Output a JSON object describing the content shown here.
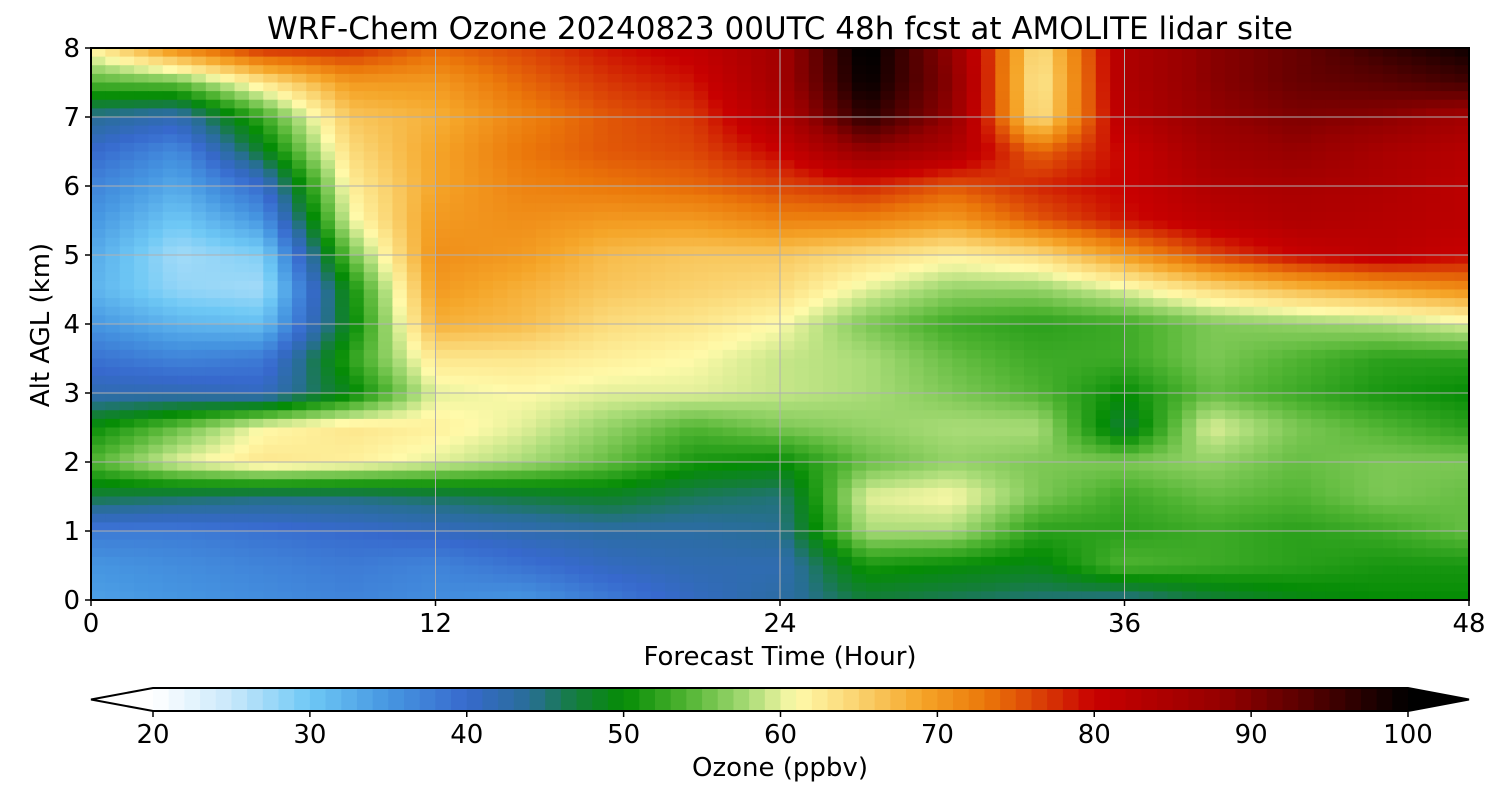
{
  "chart_data": {
    "type": "heatmap",
    "title": "WRF-Chem Ozone  20240823 00UTC 48h fcst at AMOLITE lidar site",
    "xlabel": "Forecast Time (Hour)",
    "ylabel": "Alt AGL (km)",
    "xlim": [
      0,
      48
    ],
    "ylim": [
      0,
      8
    ],
    "x_ticks": [
      "0",
      "12",
      "24",
      "36",
      "48"
    ],
    "y_ticks": [
      "0",
      "1",
      "2",
      "3",
      "4",
      "5",
      "6",
      "7",
      "8"
    ],
    "grid": true,
    "colorbar": {
      "label": "Ozone  (ppbv)",
      "range": [
        20,
        100
      ],
      "extend": "both",
      "ticks": [
        "20",
        "30",
        "40",
        "50",
        "60",
        "70",
        "80",
        "90",
        "100"
      ]
    },
    "x": [
      0,
      3,
      6,
      9,
      12,
      15,
      18,
      21,
      24,
      27,
      30,
      33,
      36,
      39,
      42,
      45,
      48
    ],
    "y": [
      0,
      0.5,
      1,
      1.5,
      2,
      2.5,
      3,
      3.5,
      4,
      4.5,
      5,
      5.5,
      6,
      6.5,
      7,
      7.5,
      8
    ],
    "z": [
      [
        34,
        35,
        36,
        37,
        36,
        35,
        38,
        41,
        43,
        47,
        46,
        45,
        44,
        47,
        49,
        50,
        50
      ],
      [
        35,
        36,
        37,
        38,
        37,
        39,
        41,
        42,
        42,
        51,
        50,
        49,
        54,
        53,
        52,
        51,
        51
      ],
      [
        38,
        38,
        39,
        40,
        41,
        42,
        43,
        43,
        44,
        58,
        58,
        52,
        52,
        53,
        52,
        53,
        55
      ],
      [
        47,
        46,
        45,
        45,
        46,
        47,
        48,
        46,
        45,
        60,
        61,
        56,
        53,
        55,
        54,
        56,
        55
      ],
      [
        54,
        60,
        63,
        62,
        60,
        58,
        55,
        51,
        50,
        55,
        57,
        56,
        56,
        57,
        55,
        56,
        56
      ],
      [
        50,
        55,
        61,
        63,
        62,
        60,
        57,
        54,
        56,
        57,
        58,
        58,
        47,
        60,
        56,
        54,
        52
      ],
      [
        42,
        42,
        41,
        49,
        60,
        61,
        60,
        60,
        59,
        58,
        56,
        54,
        50,
        55,
        53,
        51,
        50
      ],
      [
        39,
        37,
        38,
        52,
        63,
        63,
        62,
        61,
        59,
        58,
        55,
        53,
        53,
        56,
        54,
        52,
        52
      ],
      [
        35,
        32,
        31,
        49,
        68,
        67,
        64,
        63,
        61,
        56,
        53,
        52,
        53,
        56,
        57,
        58,
        60
      ],
      [
        32,
        28,
        27,
        50,
        70,
        68,
        66,
        65,
        64,
        60,
        57,
        57,
        60,
        64,
        67,
        69,
        71
      ],
      [
        33,
        27,
        29,
        55,
        71,
        70,
        67,
        66,
        66,
        64,
        62,
        64,
        70,
        76,
        80,
        82,
        80
      ],
      [
        35,
        30,
        35,
        60,
        70,
        71,
        70,
        70,
        72,
        72,
        70,
        75,
        79,
        82,
        84,
        83,
        82
      ],
      [
        37,
        33,
        40,
        62,
        69,
        72,
        73,
        74,
        76,
        78,
        75,
        78,
        80,
        84,
        85,
        84,
        82
      ],
      [
        40,
        36,
        48,
        64,
        69,
        73,
        75,
        76,
        80,
        88,
        84,
        74,
        80,
        86,
        88,
        85,
        83
      ],
      [
        44,
        42,
        53,
        66,
        68,
        72,
        75,
        77,
        84,
        97,
        88,
        63,
        83,
        88,
        90,
        89,
        86
      ],
      [
        54,
        55,
        63,
        70,
        70,
        74,
        77,
        79,
        86,
        100,
        89,
        62,
        84,
        89,
        92,
        93,
        95
      ],
      [
        62,
        72,
        78,
        78,
        74,
        76,
        79,
        81,
        86,
        101,
        88,
        63,
        84,
        89,
        92,
        96,
        99
      ]
    ]
  }
}
